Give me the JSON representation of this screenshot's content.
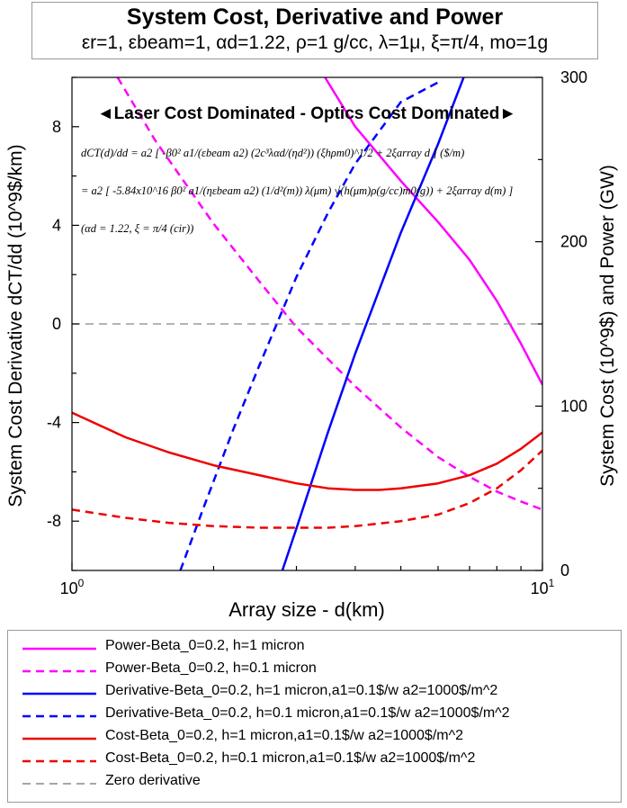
{
  "title": {
    "main": "System Cost, Derivative and Power",
    "sub": "εr=1, εbeam=1, αd=1.22, ρ=1 g/cc, λ=1μ, ξ=π/4, mo=1g"
  },
  "chart_data": {
    "type": "line",
    "title": "System Cost, Derivative and Power",
    "subtitle": "εr=1, εbeam=1, αd=1.22, ρ=1 g/cc, λ=1μ, ξ=π/4, mo=1g",
    "xlabel": "Array size - d(km)",
    "ylabel_left": "System Cost Derivative dCT/dd (10^9$/km)",
    "ylabel_right": "System Cost (10^9$) and Power (GW)",
    "x_scale": "log",
    "xlim": [
      1,
      10
    ],
    "x_ticks": [
      "10^0",
      "10^1"
    ],
    "ylim_left": [
      -10,
      10
    ],
    "y_ticks_left": [
      "-8",
      "-4",
      "0",
      "4",
      "8"
    ],
    "ylim_right": [
      0,
      300
    ],
    "y_ticks_right": [
      "0",
      "100",
      "200",
      "300"
    ],
    "annotation": "◄Laser Cost Dominated - Optics Cost Dominated►",
    "equations": [
      "dCT(d)/dd = a2 [ -β0² a1/(εbeam a2) (2c³λαd/(ηd²)) (ξhρm0)^1/2 + 2ξarray d ] ($/m)",
      "= a2 [ -5.84x10^16 β0² a1/(ηεbeam a2) (1/d²(m)) λ(μm) √(h(μm)ρ(g/cc)m0(g)) + 2ξarray d(m) ]",
      "(αd = 1.22, ξ = π/4 (cir))"
    ],
    "series": [
      {
        "name": "Power-Beta_0=0.2, h=1 micron",
        "axis": "right",
        "color": "#ff00ff",
        "dash": "solid",
        "x": [
          3.45,
          4.0,
          5.0,
          6.0,
          7.0,
          8.0,
          9.0,
          10.0
        ],
        "values": [
          300,
          270,
          237,
          212,
          189,
          164,
          138,
          113
        ]
      },
      {
        "name": "Power-Beta_0=0.2, h=0.1 micron",
        "axis": "right",
        "color": "#ff00ff",
        "dash": "dashed",
        "x": [
          1.25,
          1.5,
          2.0,
          2.5,
          3.0,
          4.0,
          5.0,
          6.0,
          7.0,
          8.0,
          9.0,
          10.0
        ],
        "values": [
          300,
          262,
          211,
          176,
          148,
          112,
          87,
          69,
          57,
          48,
          42,
          37
        ]
      },
      {
        "name": "Derivative-Beta_0=0.2, h=1 micron,a1=0.1$/w a2=1000$/m^2",
        "axis": "left",
        "color": "#0000ff",
        "dash": "solid",
        "x": [
          2.8,
          3.0,
          3.5,
          4.0,
          5.0,
          6.0,
          6.8
        ],
        "values": [
          -10.0,
          -8.3,
          -4.4,
          -1.2,
          3.7,
          7.3,
          10.0
        ]
      },
      {
        "name": "Derivative-Beta_0=0.2, h=0.1 micron,a1=0.1$/w a2=1000$/m^2",
        "axis": "left",
        "color": "#0000ff",
        "dash": "dashed",
        "x": [
          1.7,
          1.9,
          2.2,
          2.5,
          3.0,
          3.5,
          4.0,
          5.0,
          6.0
        ],
        "values": [
          -10.0,
          -7.5,
          -4.3,
          -1.7,
          1.9,
          4.5,
          6.5,
          9.0,
          9.8
        ]
      },
      {
        "name": "Cost-Beta_0=0.2, h=1 micron,a1=0.1$/w a2=1000$/m^2",
        "axis": "right",
        "color": "#ee0000",
        "dash": "solid",
        "x": [
          1.0,
          1.3,
          1.6,
          2.0,
          2.5,
          3.0,
          3.5,
          4.0,
          4.5,
          5.0,
          6.0,
          7.0,
          8.0,
          9.0,
          10.0
        ],
        "values": [
          96,
          81,
          72,
          64,
          58,
          53,
          50,
          49,
          49,
          50,
          53,
          58,
          65,
          74,
          84
        ]
      },
      {
        "name": "Cost-Beta_0=0.2, h=0.1 micron,a1=0.1$/w a2=1000$/m^2",
        "axis": "right",
        "color": "#ee0000",
        "dash": "dashed",
        "x": [
          1.0,
          1.3,
          1.6,
          2.0,
          2.5,
          3.0,
          3.5,
          4.0,
          5.0,
          6.0,
          7.0,
          8.0,
          9.0,
          10.0
        ],
        "values": [
          37,
          32,
          29,
          27,
          26,
          26,
          26,
          27,
          30,
          34,
          41,
          50,
          61,
          73
        ]
      },
      {
        "name": "Zero derivative",
        "axis": "left",
        "color": "#888888",
        "dash": "dashed",
        "x": [
          1.0,
          10.0
        ],
        "values": [
          0,
          0
        ]
      }
    ]
  }
}
